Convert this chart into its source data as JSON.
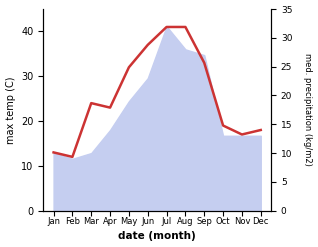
{
  "months": [
    "Jan",
    "Feb",
    "Mar",
    "Apr",
    "May",
    "Jun",
    "Jul",
    "Aug",
    "Sep",
    "Oct",
    "Nov",
    "Dec"
  ],
  "temp": [
    13,
    12,
    24,
    23,
    32,
    37,
    41,
    41,
    33,
    19,
    17,
    18
  ],
  "precip": [
    10,
    9,
    10,
    14,
    19,
    23,
    32,
    28,
    27,
    13,
    13,
    13
  ],
  "temp_color": "#cc3333",
  "precip_fill_color": "#c5cef0",
  "left_ylim": [
    0,
    45
  ],
  "right_ylim": [
    0,
    35
  ],
  "left_yticks": [
    0,
    10,
    20,
    30,
    40
  ],
  "right_yticks": [
    0,
    5,
    10,
    15,
    20,
    25,
    30,
    35
  ],
  "xlabel": "date (month)",
  "ylabel_left": "max temp (C)",
  "ylabel_right": "med. precipitation (kg/m2)",
  "bg_color": "#ffffff"
}
